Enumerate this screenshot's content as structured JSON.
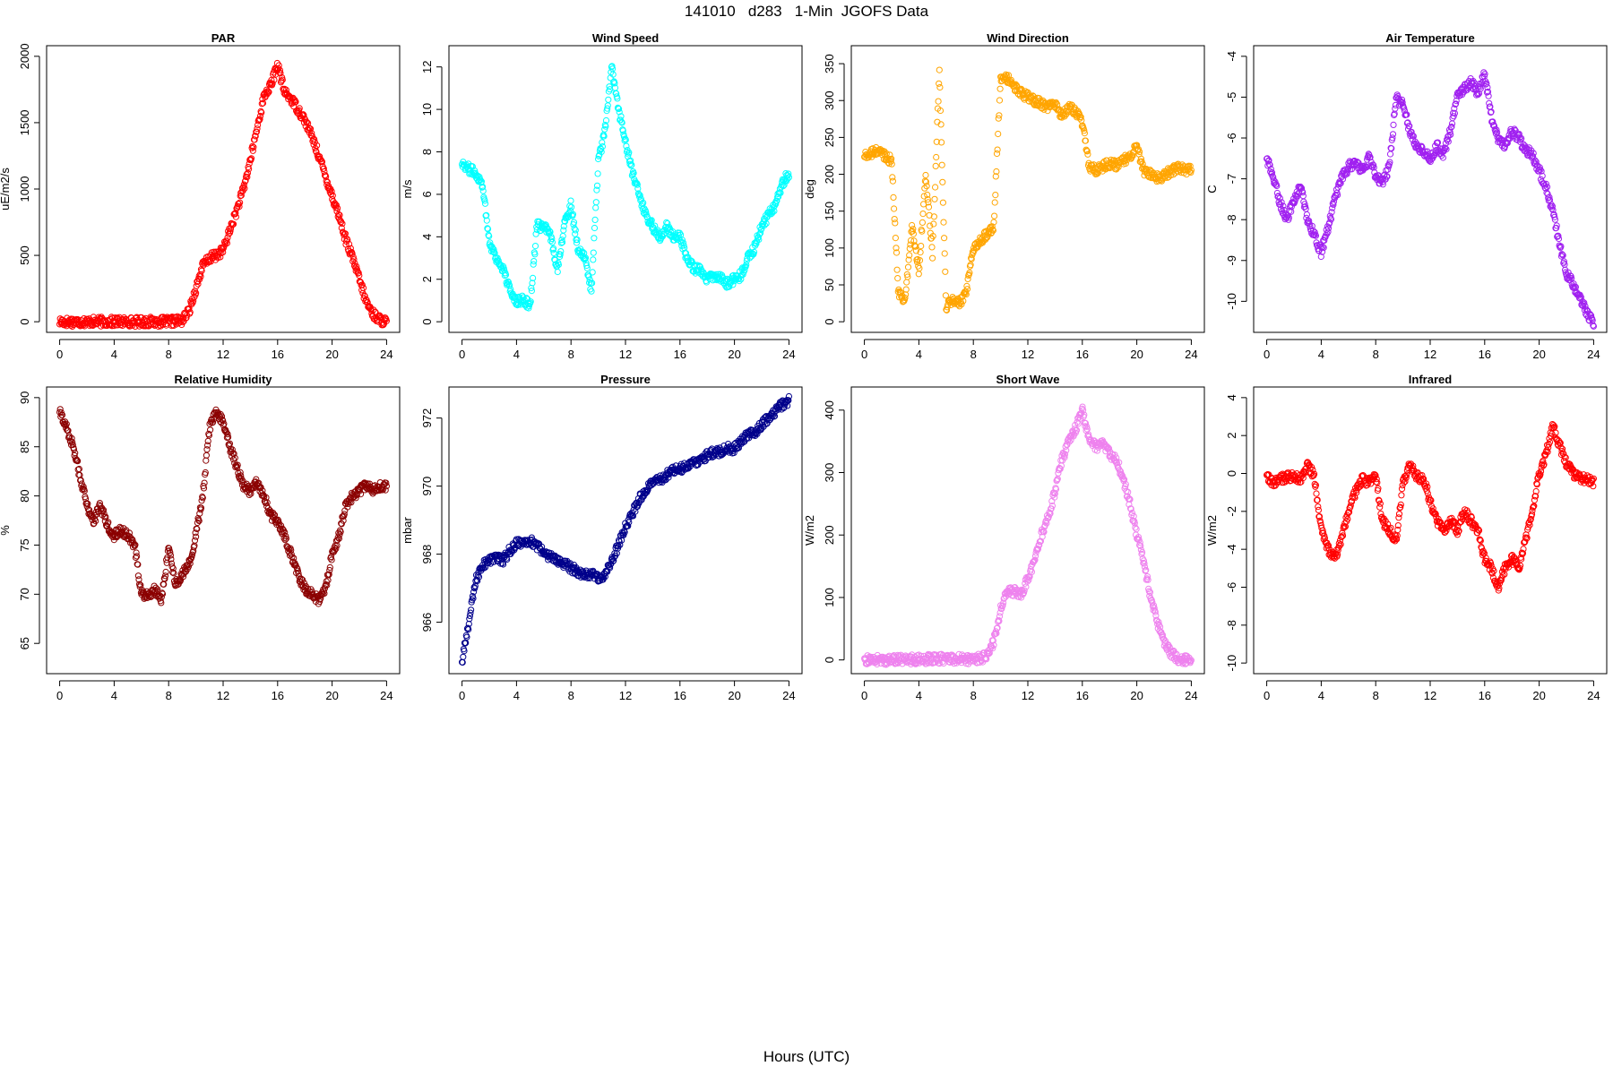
{
  "title": "141010   d283   1-Min  JGOFS Data",
  "xlabel": "Hours (UTC)",
  "chart_data": [
    {
      "type": "scatter",
      "title": "PAR",
      "ylabel": "uE/m2/s",
      "color": "#ff0000",
      "xlim": [
        0,
        24
      ],
      "ylim": [
        0,
        2000
      ],
      "xticks": [
        0,
        4,
        8,
        12,
        16,
        20,
        24
      ],
      "yticks": [
        0,
        500,
        1000,
        1500,
        2000
      ],
      "series": [
        {
          "x": [
            0,
            2,
            4,
            6,
            8,
            9,
            9.5,
            10,
            10.5,
            11,
            11.5,
            12,
            12.5,
            13,
            13.5,
            14,
            14.5,
            15,
            15.5,
            16,
            16.5,
            17,
            17.5,
            18,
            18.5,
            19,
            19.5,
            20,
            20.5,
            21,
            21.5,
            22,
            22.5,
            23,
            23.5,
            24
          ],
          "y": [
            0,
            0,
            0,
            0,
            0,
            10,
            80,
            250,
            420,
            480,
            500,
            540,
            690,
            840,
            1000,
            1220,
            1460,
            1700,
            1780,
            1940,
            1730,
            1680,
            1600,
            1520,
            1400,
            1260,
            1100,
            950,
            800,
            620,
            480,
            320,
            150,
            60,
            15,
            0
          ]
        }
      ]
    },
    {
      "type": "scatter",
      "title": "Wind Speed",
      "ylabel": "m/s",
      "color": "#00ffff",
      "xlim": [
        0,
        24
      ],
      "ylim": [
        0,
        12.5
      ],
      "xticks": [
        0,
        4,
        8,
        12,
        16,
        20,
        24
      ],
      "yticks": [
        0,
        2,
        4,
        6,
        8,
        10,
        12
      ],
      "series": [
        {
          "x": [
            0,
            0.5,
            1,
            1.5,
            2,
            2.5,
            3,
            3.5,
            4,
            4.5,
            5,
            5.5,
            6,
            6.5,
            7,
            7.5,
            8,
            8.5,
            9,
            9.5,
            10,
            10.5,
            11,
            11.5,
            12,
            12.5,
            13,
            13.5,
            14,
            14.5,
            15,
            15.5,
            16,
            16.5,
            17,
            17.5,
            18,
            18.5,
            19,
            19.5,
            20,
            20.5,
            21,
            21.5,
            22,
            22.5,
            23,
            23.5,
            24
          ],
          "y": [
            7.5,
            7.2,
            7.0,
            6.5,
            3.8,
            3.0,
            2.5,
            1.5,
            1.0,
            1.0,
            0.8,
            4.5,
            4.5,
            4.0,
            2.5,
            4.5,
            5.5,
            3.5,
            3.0,
            1.5,
            7.5,
            9.0,
            12.0,
            10.0,
            8.5,
            7.0,
            6.0,
            5.0,
            4.5,
            4.0,
            4.5,
            4.0,
            4.0,
            3.0,
            2.5,
            2.5,
            2.0,
            2.2,
            2.0,
            1.8,
            2.0,
            2.2,
            3.0,
            3.5,
            4.5,
            5.0,
            5.5,
            6.5,
            7.0
          ]
        }
      ]
    },
    {
      "type": "scatter",
      "title": "Wind Direction",
      "ylabel": "deg",
      "color": "#ffa500",
      "xlim": [
        0,
        24
      ],
      "ylim": [
        0,
        360
      ],
      "xticks": [
        0,
        4,
        8,
        12,
        16,
        20,
        24
      ],
      "yticks": [
        0,
        50,
        100,
        150,
        200,
        250,
        300,
        350
      ],
      "series": [
        {
          "x": [
            0,
            0.5,
            1,
            1.5,
            2,
            2.5,
            3,
            3.5,
            4,
            4.5,
            5,
            5.5,
            6,
            6.5,
            7,
            7.5,
            8,
            8.5,
            9,
            9.5,
            10,
            10.5,
            11,
            11.5,
            12,
            12.5,
            13,
            13.5,
            14,
            14.5,
            15,
            15.5,
            16,
            16.5,
            17,
            17.5,
            18,
            18.5,
            19,
            19.5,
            20,
            20.5,
            21,
            21.5,
            22,
            22.5,
            23,
            23.5,
            24
          ],
          "y": [
            225,
            228,
            232,
            226,
            218,
            40,
            30,
            130,
            70,
            200,
            90,
            340,
            20,
            30,
            25,
            40,
            100,
            110,
            120,
            130,
            330,
            330,
            318,
            310,
            305,
            300,
            295,
            290,
            295,
            280,
            290,
            285,
            270,
            210,
            205,
            210,
            215,
            212,
            218,
            225,
            240,
            205,
            200,
            195,
            198,
            205,
            208,
            206,
            205
          ]
        }
      ]
    },
    {
      "type": "scatter",
      "title": "Air Temperature",
      "ylabel": "C",
      "color": "#a020f0",
      "xlim": [
        0,
        24
      ],
      "ylim": [
        -10.5,
        -4
      ],
      "xticks": [
        0,
        4,
        8,
        12,
        16,
        20,
        24
      ],
      "yticks": [
        -10,
        -9,
        -8,
        -7,
        -6,
        -5,
        -4
      ],
      "series": [
        {
          "x": [
            0,
            0.5,
            1,
            1.5,
            2,
            2.5,
            3,
            3.5,
            4,
            4.5,
            5,
            5.5,
            6,
            6.5,
            7,
            7.5,
            8,
            8.5,
            9,
            9.5,
            10,
            10.5,
            11,
            11.5,
            12,
            12.5,
            13,
            13.5,
            14,
            14.5,
            15,
            15.5,
            16,
            16.5,
            17,
            17.5,
            18,
            18.5,
            19,
            19.5,
            20,
            20.5,
            21,
            21.5,
            22,
            22.5,
            23,
            23.5,
            24
          ],
          "y": [
            -6.5,
            -7.0,
            -7.6,
            -8.0,
            -7.5,
            -7.2,
            -8.0,
            -8.4,
            -8.8,
            -8.2,
            -7.5,
            -7.0,
            -6.7,
            -6.6,
            -6.8,
            -6.5,
            -6.9,
            -7.1,
            -6.7,
            -5.0,
            -5.2,
            -5.8,
            -6.2,
            -6.3,
            -6.5,
            -6.2,
            -6.4,
            -5.8,
            -5.0,
            -4.8,
            -4.6,
            -4.9,
            -4.4,
            -5.5,
            -6.0,
            -6.2,
            -5.8,
            -6.0,
            -6.3,
            -6.4,
            -6.8,
            -7.2,
            -7.8,
            -8.6,
            -9.3,
            -9.6,
            -9.9,
            -10.3,
            -10.5
          ]
        }
      ]
    },
    {
      "type": "scatter",
      "title": "Relative Humidity",
      "ylabel": "%",
      "color": "#8b0000",
      "xlim": [
        0,
        24
      ],
      "ylim": [
        63,
        90
      ],
      "xticks": [
        0,
        4,
        8,
        12,
        16,
        20,
        24
      ],
      "yticks": [
        65,
        70,
        75,
        80,
        85,
        90
      ],
      "series": [
        {
          "x": [
            0,
            0.5,
            1,
            1.5,
            2,
            2.5,
            3,
            3.5,
            4,
            4.5,
            5,
            5.5,
            6,
            6.5,
            7,
            7.5,
            8,
            8.5,
            9,
            9.5,
            10,
            10.5,
            11,
            11.5,
            12,
            12.5,
            13,
            13.5,
            14,
            14.5,
            15,
            15.5,
            16,
            16.5,
            17,
            17.5,
            18,
            18.5,
            19,
            19.5,
            20,
            20.5,
            21,
            21.5,
            22,
            22.5,
            23,
            23.5,
            24
          ],
          "y": [
            88.5,
            87,
            85,
            82,
            79,
            77.5,
            79,
            77,
            76,
            76.5,
            76,
            75,
            70,
            70,
            70.5,
            69.5,
            75,
            71,
            72,
            73,
            76,
            80,
            87,
            88.5,
            87.5,
            85,
            83,
            81,
            80.5,
            81.5,
            80,
            78,
            77.5,
            76,
            74,
            72,
            70.5,
            70,
            69.5,
            70.5,
            74,
            76,
            79,
            80,
            80.5,
            81,
            80.5,
            81,
            81
          ]
        }
      ]
    },
    {
      "type": "scatter",
      "title": "Pressure",
      "ylabel": "mbar",
      "color": "#00008b",
      "xlim": [
        0,
        24
      ],
      "ylim": [
        964.8,
        972.6
      ],
      "xticks": [
        0,
        4,
        8,
        12,
        16,
        20,
        24
      ],
      "yticks": [
        966,
        968,
        970,
        972
      ],
      "series": [
        {
          "x": [
            0,
            0.5,
            1,
            1.5,
            2,
            2.5,
            3,
            3.5,
            4,
            4.5,
            5,
            5.5,
            6,
            6.5,
            7,
            7.5,
            8,
            8.5,
            9,
            9.5,
            10,
            10.5,
            11,
            11.5,
            12,
            12.5,
            13,
            13.5,
            14,
            14.5,
            15,
            15.5,
            16,
            16.5,
            17,
            17.5,
            18,
            18.5,
            19,
            19.5,
            20,
            20.5,
            21,
            21.5,
            22,
            22.5,
            23,
            23.5,
            24
          ],
          "y": [
            964.8,
            966.0,
            967.2,
            967.7,
            967.8,
            967.9,
            967.8,
            968.1,
            968.3,
            968.4,
            968.4,
            968.2,
            968.1,
            967.9,
            967.8,
            967.7,
            967.6,
            967.5,
            967.4,
            967.4,
            967.3,
            967.4,
            967.8,
            968.3,
            968.8,
            969.2,
            969.6,
            969.9,
            970.1,
            970.2,
            970.3,
            970.5,
            970.5,
            970.6,
            970.7,
            970.8,
            970.9,
            971.0,
            971.0,
            971.1,
            971.1,
            971.3,
            971.5,
            971.6,
            971.8,
            972.0,
            972.2,
            972.4,
            972.5
          ]
        }
      ]
    },
    {
      "type": "scatter",
      "title": "Short Wave",
      "ylabel": "W/m2",
      "color": "#ee82ee",
      "xlim": [
        0,
        24
      ],
      "ylim": [
        -5,
        420
      ],
      "xticks": [
        0,
        4,
        8,
        12,
        16,
        20,
        24
      ],
      "yticks": [
        0,
        100,
        200,
        300,
        400
      ],
      "series": [
        {
          "x": [
            0,
            2,
            4,
            6,
            8,
            9,
            9.5,
            10,
            10.5,
            11,
            11.5,
            12,
            12.5,
            13,
            13.5,
            14,
            14.5,
            15,
            15.5,
            16,
            16.5,
            17,
            17.5,
            18,
            18.5,
            19,
            19.5,
            20,
            20.5,
            21,
            21.5,
            22,
            22.5,
            23,
            23.5,
            24
          ],
          "y": [
            0,
            0,
            1,
            2,
            1,
            5,
            30,
            80,
            110,
            110,
            105,
            130,
            160,
            200,
            230,
            270,
            320,
            350,
            370,
            400,
            355,
            340,
            350,
            330,
            320,
            290,
            250,
            200,
            160,
            100,
            60,
            30,
            10,
            3,
            1,
            0
          ]
        }
      ]
    },
    {
      "type": "scatter",
      "title": "Infrared",
      "ylabel": "W/m2",
      "color": "#ff0000",
      "xlim": [
        0,
        24
      ],
      "ylim": [
        -10,
        4
      ],
      "xticks": [
        0,
        4,
        8,
        12,
        16,
        20,
        24
      ],
      "yticks": [
        -10,
        -8,
        -6,
        -4,
        -2,
        0,
        2,
        4
      ],
      "series": [
        {
          "x": [
            0,
            0.5,
            1,
            1.5,
            2,
            2.5,
            3,
            3.5,
            4,
            4.5,
            5,
            5.5,
            6,
            6.5,
            7,
            7.5,
            8,
            8.5,
            9,
            9.5,
            10,
            10.5,
            11,
            11.5,
            12,
            12.5,
            13,
            13.5,
            14,
            14.5,
            15,
            15.5,
            16,
            16.5,
            17,
            17.5,
            18,
            18.5,
            19,
            19.5,
            20,
            20.5,
            21,
            21.5,
            22,
            22.5,
            23,
            23.5,
            24
          ],
          "y": [
            -0.2,
            -0.5,
            -0.3,
            -0.2,
            -0.2,
            -0.3,
            0.5,
            -0.2,
            -3.0,
            -4.0,
            -4.5,
            -3.5,
            -2.0,
            -1.0,
            -0.3,
            -0.5,
            -0.2,
            -2.5,
            -3.0,
            -3.5,
            -0.5,
            0.5,
            -0.2,
            -0.2,
            -1.5,
            -2.5,
            -3.0,
            -2.5,
            -3.0,
            -2.0,
            -2.5,
            -3.0,
            -4.5,
            -5.0,
            -6.0,
            -5.0,
            -4.5,
            -5.0,
            -3.5,
            -2.0,
            0.0,
            1.0,
            2.5,
            1.5,
            0.5,
            0.0,
            -0.2,
            -0.3,
            -0.5
          ]
        }
      ]
    }
  ]
}
